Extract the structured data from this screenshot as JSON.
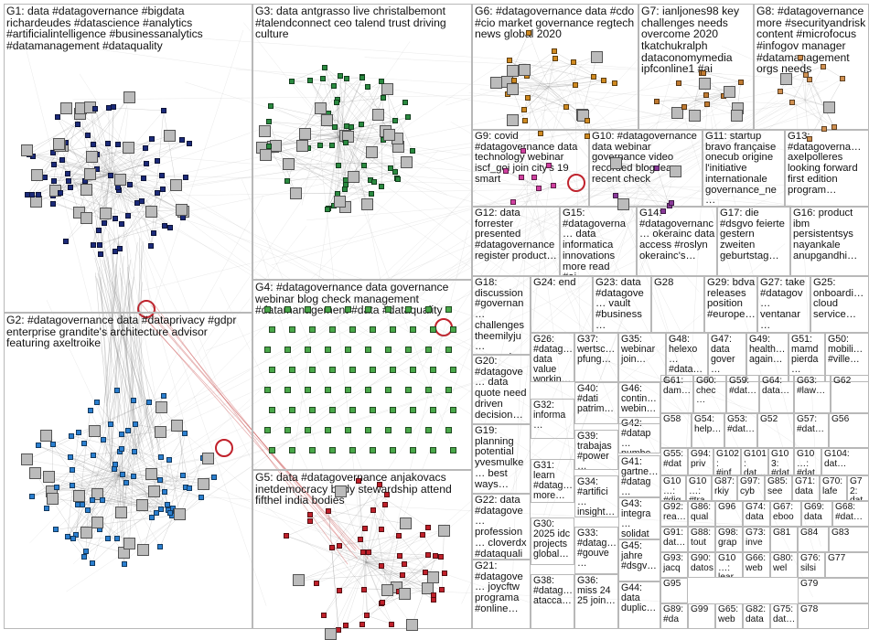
{
  "groups": [
    {
      "id": "G1",
      "label": "G1: data #datagovernance #bigdata richardeudes #datascience #analytics #artificialintelligence #businessanalytics #datamanagement #dataquality",
      "color": "#1b2a7a"
    },
    {
      "id": "G2",
      "label": "G2: #datagovernance data #dataprivacy #gdpr enterprise grandite's architecture advisor featuring axeltroike",
      "color": "#2a7fd0"
    },
    {
      "id": "G3",
      "label": "G3: data antgrasso live christalbemont #talendconnect ceo talend trust driving culture",
      "color": "#1e7a3a"
    },
    {
      "id": "G4",
      "label": "G4: #datagovernance data governance webinar blog check management #datamanagement #data #dataquality",
      "color": "#3a9a3a"
    },
    {
      "id": "G5",
      "label": "G5: data #datagovernance anjakovacs inetdemocracy body stewardship attend fifthel india bodies",
      "color": "#c0202a"
    },
    {
      "id": "G6",
      "label": "G6: #datagovernance data #cdo #cio market governance regtech news global 2020",
      "color": "#d08a20"
    },
    {
      "id": "G7",
      "label": "G7: ianljones98 key challenges needs overcome 2020 tkatchukralph dataconomymedia ipfconline1 #ai",
      "color": "#c07a30"
    },
    {
      "id": "G8",
      "label": "G8: #datagovernance more #securityandrisk content #microfocus #infogov manager #datamanagement orgs needs",
      "color": "#d09050"
    },
    {
      "id": "G9",
      "label": "G9: covid #datagovernance data technology webinar iscf_goi join city's 19 smart",
      "color": "#d040a0"
    },
    {
      "id": "G10",
      "label": "G10: #datagovernance data webinar governance video recorded blog learn recent check",
      "color": "#8a3a9a"
    },
    {
      "id": "G11",
      "label": "G11: startup bravo française onecub origine l'initiative internationale governance_ne…",
      "color": "#606060"
    },
    {
      "id": "G12",
      "label": "G12: data forrester presented #datagovernance register product…",
      "color": "#406080"
    },
    {
      "id": "G13",
      "label": "G13: #datagoverna… axelpolleres looking forward first edition program…",
      "color": "#606060"
    },
    {
      "id": "G14",
      "label": "G14: #datagovernanc… okerainc data access #roslyn okerainc's…",
      "color": "#606060"
    },
    {
      "id": "G15",
      "label": "G15: #datagoverna… data informatica innovations more read #ai…",
      "color": "#606060"
    },
    {
      "id": "G16",
      "label": "G16: product ibm persistentsys nayankale anupgandhi…",
      "color": "#606060"
    },
    {
      "id": "G17",
      "label": "G17: die #dsgvo feierte gestern zweiten geburtstag…",
      "color": "#606060"
    },
    {
      "id": "G18",
      "label": "G18: discussion #governan… challenges theemilyju… research…",
      "color": "#606060"
    },
    {
      "id": "G19",
      "label": "G19: planning potential yvesmulke… best ways…",
      "color": "#606060"
    },
    {
      "id": "G20",
      "label": "G20: #datagove… data quote need driven decision…",
      "color": "#606060"
    },
    {
      "id": "G21",
      "label": "G21: #datagove… joycftw programa #online…",
      "color": "#606060"
    },
    {
      "id": "G22",
      "label": "G22: data #datagove… profession… cloverdx #dataquali…",
      "color": "#606060"
    },
    {
      "id": "G23",
      "label": "G23: data #datagove… vault #business…",
      "color": "#b02020"
    },
    {
      "id": "G24",
      "label": "G24: end",
      "color": "#606060"
    },
    {
      "id": "G25",
      "label": "G25: onboardi… cloud service…",
      "color": "#606060"
    },
    {
      "id": "G26",
      "label": "G26: #datag… data value workin…",
      "color": "#606060"
    },
    {
      "id": "G27",
      "label": "G27: take #datagov… ventanar… survey…",
      "color": "#606060"
    },
    {
      "id": "G28",
      "label": "G28",
      "color": "#606060"
    },
    {
      "id": "G29",
      "label": "G29: bdva releases position #europe…",
      "color": "#606060"
    },
    {
      "id": "G30",
      "label": "G30: 2025 idc projects global…",
      "color": "#606060"
    },
    {
      "id": "G31",
      "label": "G31: learn #datag… more…",
      "color": "#606060"
    },
    {
      "id": "G32",
      "label": "G32: informa…",
      "color": "#606060"
    },
    {
      "id": "G33",
      "label": "G33: #datag… #gouve…",
      "color": "#606060"
    },
    {
      "id": "G34",
      "label": "G34: #artifici… insight… global…",
      "color": "#606060"
    },
    {
      "id": "G35",
      "label": "G35: webinar join…",
      "color": "#606060"
    },
    {
      "id": "G36",
      "label": "G36: miss 24 25 join…",
      "color": "#606060"
    },
    {
      "id": "G37",
      "label": "G37: wertsc… pfung…",
      "color": "#606060"
    },
    {
      "id": "G38",
      "label": "G38: #datag… atacca…",
      "color": "#606060"
    },
    {
      "id": "G39",
      "label": "G39: trabajas #power…",
      "color": "#606060"
    },
    {
      "id": "G40",
      "label": "G40: #dati patrim…",
      "color": "#606060"
    },
    {
      "id": "G41",
      "label": "G41: gartne… #datag…",
      "color": "#606060"
    },
    {
      "id": "G42",
      "label": "G42: #datap… numbe…",
      "color": "#606060"
    },
    {
      "id": "G43",
      "label": "G43: integra… solidat…",
      "color": "#606060"
    },
    {
      "id": "G44",
      "label": "G44: data duplic…",
      "color": "#606060"
    },
    {
      "id": "G45",
      "label": "G45: jahre #dsgv…",
      "color": "#606060"
    },
    {
      "id": "G46",
      "label": "G46: contin… webin…",
      "color": "#606060"
    },
    {
      "id": "G47",
      "label": "G47: data gover…",
      "color": "#606060"
    },
    {
      "id": "G48",
      "label": "G48: helexo… #data…",
      "color": "#606060"
    },
    {
      "id": "G49",
      "label": "G49: health… again…",
      "color": "#606060"
    },
    {
      "id": "G50",
      "label": "G50: mobili… #ville…",
      "color": "#606060"
    },
    {
      "id": "G51",
      "label": "G51: mamd pierda…",
      "color": "#606060"
    },
    {
      "id": "G52",
      "label": "G52",
      "color": "#606060"
    },
    {
      "id": "G53",
      "label": "G53: #dat…",
      "color": "#606060"
    },
    {
      "id": "G54",
      "label": "G54: help…",
      "color": "#606060"
    },
    {
      "id": "G55",
      "label": "G55: #dat…",
      "color": "#606060"
    },
    {
      "id": "G56",
      "label": "G56",
      "color": "#606060"
    },
    {
      "id": "G57",
      "label": "G57: #dat…",
      "color": "#606060"
    },
    {
      "id": "G58",
      "label": "G58",
      "color": "#606060"
    },
    {
      "id": "G59",
      "label": "G59: #dat…",
      "color": "#606060"
    },
    {
      "id": "G60",
      "label": "G60: chec…",
      "color": "#606060"
    },
    {
      "id": "G61",
      "label": "G61: dam…",
      "color": "#606060"
    },
    {
      "id": "G62",
      "label": "G62",
      "color": "#606060"
    },
    {
      "id": "G63",
      "label": "G63: #law…",
      "color": "#606060"
    },
    {
      "id": "G64",
      "label": "G64: data…",
      "color": "#606060"
    },
    {
      "id": "G65",
      "label": "G65: web…",
      "color": "#606060"
    },
    {
      "id": "G66",
      "label": "G66: web…",
      "color": "#606060"
    },
    {
      "id": "G67",
      "label": "G67: eboo…",
      "color": "#606060"
    },
    {
      "id": "G68",
      "label": "G68: #dat…",
      "color": "#606060"
    },
    {
      "id": "G69",
      "label": "G69: data…",
      "color": "#606060"
    },
    {
      "id": "G70",
      "label": "G70: lafe",
      "color": "#606060"
    },
    {
      "id": "G71",
      "label": "G71: data…",
      "color": "#606060"
    },
    {
      "id": "G72",
      "label": "G72: data…",
      "color": "#606060"
    },
    {
      "id": "G73",
      "label": "G73: inve…",
      "color": "#606060"
    },
    {
      "id": "G74",
      "label": "G74: data…",
      "color": "#606060"
    },
    {
      "id": "G75",
      "label": "G75: dat…",
      "color": "#606060"
    },
    {
      "id": "G76",
      "label": "G76: silsi…",
      "color": "#606060"
    },
    {
      "id": "G77",
      "label": "G77",
      "color": "#606060"
    },
    {
      "id": "G78",
      "label": "G78",
      "color": "#606060"
    },
    {
      "id": "G79",
      "label": "G79",
      "color": "#606060"
    },
    {
      "id": "G80",
      "label": "G80: wel…",
      "color": "#606060"
    },
    {
      "id": "G81",
      "label": "G81",
      "color": "#606060"
    },
    {
      "id": "G82",
      "label": "G82: data…",
      "color": "#606060"
    },
    {
      "id": "G83",
      "label": "G83",
      "color": "#606060"
    },
    {
      "id": "G84",
      "label": "G84",
      "color": "#606060"
    },
    {
      "id": "G85",
      "label": "G85: see…",
      "color": "#606060"
    },
    {
      "id": "G86",
      "label": "G86: qual…",
      "color": "#606060"
    },
    {
      "id": "G87",
      "label": "G87: rkiy…",
      "color": "#606060"
    },
    {
      "id": "G88",
      "label": "G88: tout…",
      "color": "#606060"
    },
    {
      "id": "G89",
      "label": "G89: #da…",
      "color": "#606060"
    },
    {
      "id": "G90",
      "label": "G90: datos…",
      "color": "#606060"
    },
    {
      "id": "G91",
      "label": "G91: dat…",
      "color": "#606060"
    },
    {
      "id": "G92",
      "label": "G92: rea…",
      "color": "#606060"
    },
    {
      "id": "G93",
      "label": "G93: jacq…",
      "color": "#606060"
    },
    {
      "id": "G94",
      "label": "G94: priv…",
      "color": "#606060"
    },
    {
      "id": "G95",
      "label": "G95",
      "color": "#606060"
    },
    {
      "id": "G96",
      "label": "G96",
      "color": "#606060"
    },
    {
      "id": "G97",
      "label": "G97: cyb…",
      "color": "#606060"
    },
    {
      "id": "G98",
      "label": "G98: grap…",
      "color": "#606060"
    },
    {
      "id": "G99",
      "label": "G99",
      "color": "#606060"
    },
    {
      "id": "G100",
      "label": "G10…: lear…",
      "color": "#606060"
    },
    {
      "id": "G101",
      "label": "G101: dat…",
      "color": "#606060"
    },
    {
      "id": "G102",
      "label": "G102: #inf…",
      "color": "#606060"
    },
    {
      "id": "G103",
      "label": "G103: #dat…",
      "color": "#606060"
    },
    {
      "id": "G104",
      "label": "G104: dat…",
      "color": "#606060"
    },
    {
      "id": "G105",
      "label": "G10…: #dat…",
      "color": "#606060"
    },
    {
      "id": "G106",
      "label": "G10…: #dig…",
      "color": "#606060"
    },
    {
      "id": "G107",
      "label": "G10…: #tra…",
      "color": "#606060"
    }
  ]
}
